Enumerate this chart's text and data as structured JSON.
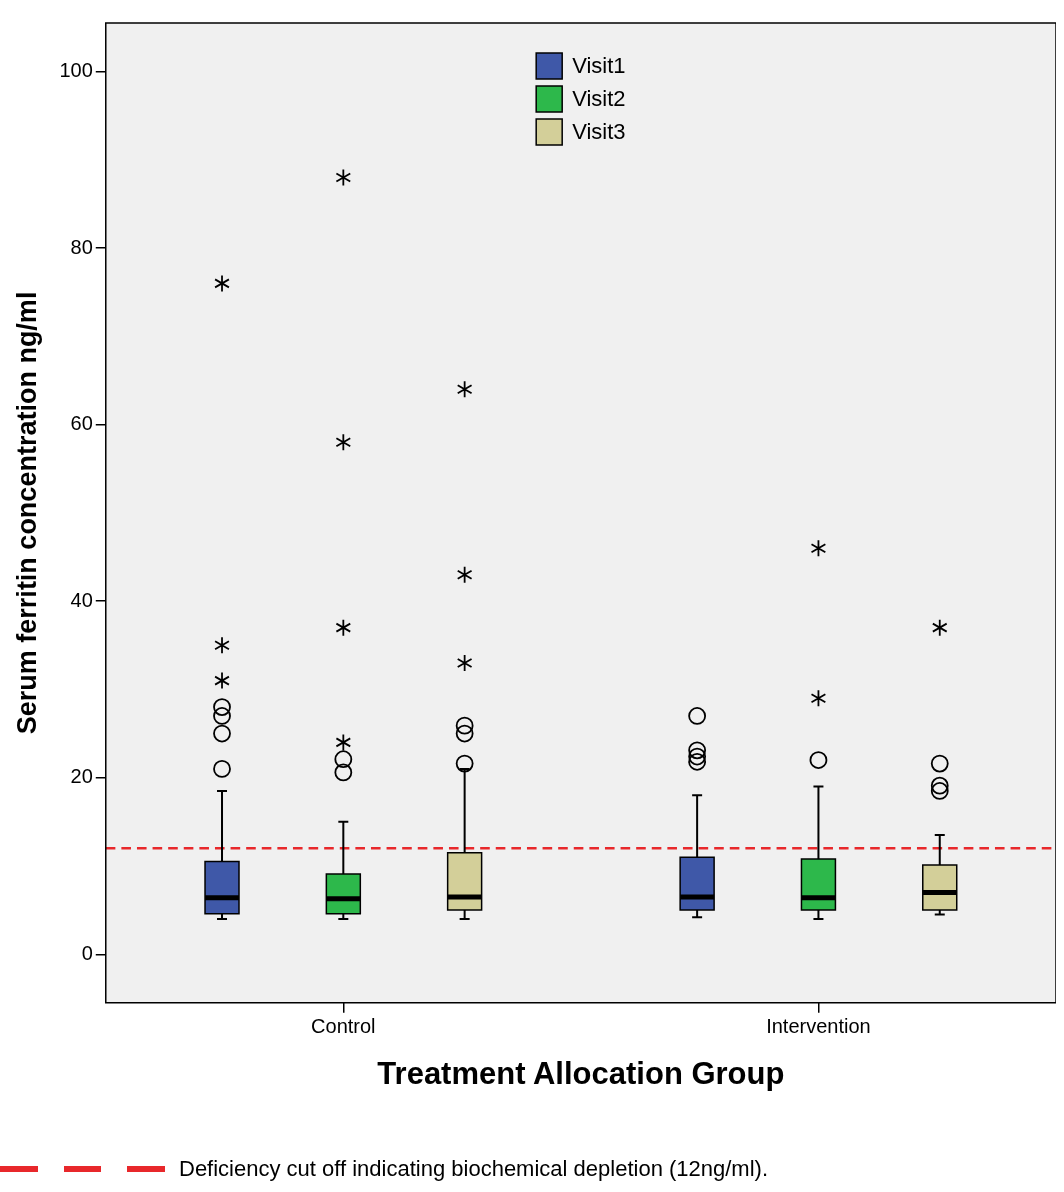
{
  "chart_data": {
    "type": "box",
    "xlabel": "Treatment Allocation Group",
    "ylabel": "Serum ferritin concentration ng/ml",
    "categories": [
      "Control",
      "Intervention"
    ],
    "series": [
      {
        "name": "Visit1",
        "color": "#3f58a8",
        "boxes": [
          {
            "low": 4.0,
            "q1": 4.6,
            "median": 6.4,
            "q3": 10.5,
            "high": 18.5,
            "outliers": [
              21,
              25,
              27,
              28,
              31,
              35,
              76
            ]
          },
          {
            "low": 4.2,
            "q1": 5.0,
            "median": 6.5,
            "q3": 11.0,
            "high": 18.0,
            "outliers": [
              21.8,
              22.4,
              23.1,
              27
            ]
          }
        ]
      },
      {
        "name": "Visit2",
        "color": "#2db84b",
        "boxes": [
          {
            "low": 4.0,
            "q1": 4.6,
            "median": 6.3,
            "q3": 9.1,
            "high": 15.0,
            "outliers": [
              20.6,
              22.1,
              24,
              37,
              58,
              88
            ]
          },
          {
            "low": 4.0,
            "q1": 5.0,
            "median": 6.4,
            "q3": 10.8,
            "high": 19.0,
            "outliers": [
              22,
              29,
              46
            ]
          }
        ]
      },
      {
        "name": "Visit3",
        "color": "#d3cf99",
        "boxes": [
          {
            "low": 4.0,
            "q1": 5.0,
            "median": 6.5,
            "q3": 11.5,
            "high": 21.0,
            "outliers": [
              21.6,
              25,
              25.9,
              33,
              43,
              64
            ]
          },
          {
            "low": 4.5,
            "q1": 5.0,
            "median": 7.0,
            "q3": 10.1,
            "high": 13.5,
            "outliers": [
              18.5,
              19.1,
              21.6,
              37
            ]
          }
        ]
      }
    ],
    "ylim": [
      -5.5,
      105.5
    ],
    "yticks": [
      0,
      20,
      40,
      60,
      80,
      100
    ],
    "grid": false,
    "legend": "top",
    "ref_lines": [
      {
        "axis": "y",
        "value": 12,
        "color": "#e8282b",
        "line_style": "dashed"
      }
    ],
    "annotations": [
      "Deficiency cut off indicating biochemical depletion (12ng/ml)."
    ]
  }
}
